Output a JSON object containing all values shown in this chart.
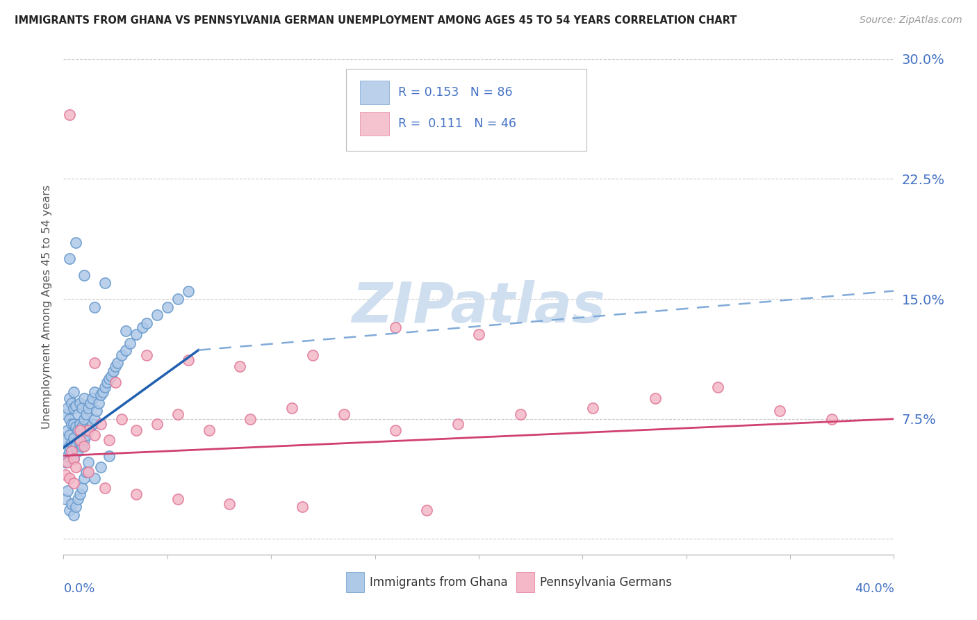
{
  "title": "IMMIGRANTS FROM GHANA VS PENNSYLVANIA GERMAN UNEMPLOYMENT AMONG AGES 45 TO 54 YEARS CORRELATION CHART",
  "source": "Source: ZipAtlas.com",
  "ylabel": "Unemployment Among Ages 45 to 54 years",
  "xlim": [
    0.0,
    0.4
  ],
  "ylim": [
    -0.01,
    0.3
  ],
  "yticks": [
    0.0,
    0.075,
    0.15,
    0.225,
    0.3
  ],
  "ytick_labels": [
    "",
    "7.5%",
    "15.0%",
    "22.5%",
    "30.0%"
  ],
  "series1_color": "#aec8e8",
  "series1_edge": "#6699cc",
  "series2_color": "#f4b8c8",
  "series2_edge": "#e07898",
  "trendline1_color": "#2060b0",
  "trendline2_color": "#d04070",
  "trendline1_color_dashed": "#80aad8",
  "watermark": "ZIPatlas",
  "watermark_color": "#d0dff0",
  "background_color": "#ffffff",
  "tick_color": "#4472c4",
  "legend_text_color": "#333333",
  "legend_r1_color": "#4472c4",
  "legend_n1_color": "#4472c4",
  "ghana_x": [
    0.001,
    0.001,
    0.001,
    0.002,
    0.002,
    0.002,
    0.003,
    0.003,
    0.003,
    0.003,
    0.003,
    0.004,
    0.004,
    0.004,
    0.005,
    0.005,
    0.005,
    0.005,
    0.005,
    0.006,
    0.006,
    0.006,
    0.007,
    0.007,
    0.007,
    0.008,
    0.008,
    0.008,
    0.009,
    0.009,
    0.009,
    0.01,
    0.01,
    0.01,
    0.011,
    0.011,
    0.012,
    0.012,
    0.013,
    0.013,
    0.014,
    0.014,
    0.015,
    0.015,
    0.016,
    0.017,
    0.018,
    0.019,
    0.02,
    0.021,
    0.022,
    0.023,
    0.024,
    0.025,
    0.026,
    0.028,
    0.03,
    0.032,
    0.035,
    0.038,
    0.04,
    0.045,
    0.05,
    0.055,
    0.06,
    0.001,
    0.002,
    0.003,
    0.004,
    0.005,
    0.006,
    0.007,
    0.008,
    0.009,
    0.01,
    0.011,
    0.012,
    0.015,
    0.018,
    0.022,
    0.003,
    0.006,
    0.01,
    0.015,
    0.02,
    0.03
  ],
  "ghana_y": [
    0.048,
    0.062,
    0.078,
    0.052,
    0.068,
    0.082,
    0.055,
    0.065,
    0.075,
    0.058,
    0.088,
    0.06,
    0.072,
    0.085,
    0.05,
    0.063,
    0.072,
    0.082,
    0.092,
    0.058,
    0.07,
    0.083,
    0.055,
    0.068,
    0.078,
    0.06,
    0.072,
    0.085,
    0.058,
    0.07,
    0.082,
    0.062,
    0.075,
    0.088,
    0.065,
    0.078,
    0.068,
    0.082,
    0.07,
    0.085,
    0.072,
    0.088,
    0.075,
    0.092,
    0.08,
    0.085,
    0.09,
    0.092,
    0.095,
    0.098,
    0.1,
    0.102,
    0.105,
    0.108,
    0.11,
    0.115,
    0.118,
    0.122,
    0.128,
    0.132,
    0.135,
    0.14,
    0.145,
    0.15,
    0.155,
    0.025,
    0.03,
    0.018,
    0.022,
    0.015,
    0.02,
    0.025,
    0.028,
    0.032,
    0.038,
    0.042,
    0.048,
    0.038,
    0.045,
    0.052,
    0.175,
    0.185,
    0.165,
    0.145,
    0.16,
    0.13
  ],
  "pagerman_x": [
    0.001,
    0.002,
    0.003,
    0.004,
    0.005,
    0.006,
    0.008,
    0.01,
    0.012,
    0.015,
    0.018,
    0.022,
    0.028,
    0.035,
    0.045,
    0.055,
    0.07,
    0.09,
    0.11,
    0.135,
    0.16,
    0.19,
    0.22,
    0.255,
    0.285,
    0.315,
    0.345,
    0.37,
    0.003,
    0.008,
    0.015,
    0.025,
    0.04,
    0.06,
    0.085,
    0.12,
    0.16,
    0.2,
    0.005,
    0.012,
    0.02,
    0.035,
    0.055,
    0.08,
    0.115,
    0.175
  ],
  "pagerman_y": [
    0.04,
    0.048,
    0.038,
    0.055,
    0.05,
    0.045,
    0.062,
    0.058,
    0.068,
    0.065,
    0.072,
    0.062,
    0.075,
    0.068,
    0.072,
    0.078,
    0.068,
    0.075,
    0.082,
    0.078,
    0.068,
    0.072,
    0.078,
    0.082,
    0.088,
    0.095,
    0.08,
    0.075,
    0.265,
    0.068,
    0.11,
    0.098,
    0.115,
    0.112,
    0.108,
    0.115,
    0.132,
    0.128,
    0.035,
    0.042,
    0.032,
    0.028,
    0.025,
    0.022,
    0.02,
    0.018
  ],
  "trendline_ghana_x0": 0.0,
  "trendline_ghana_y0": 0.057,
  "trendline_ghana_x1": 0.065,
  "trendline_ghana_y1": 0.118,
  "trendline_ghana_xd0": 0.065,
  "trendline_ghana_yd0": 0.118,
  "trendline_ghana_xd1": 0.4,
  "trendline_ghana_yd1": 0.155,
  "trendline_pa_x0": 0.0,
  "trendline_pa_y0": 0.052,
  "trendline_pa_x1": 0.4,
  "trendline_pa_y1": 0.075
}
